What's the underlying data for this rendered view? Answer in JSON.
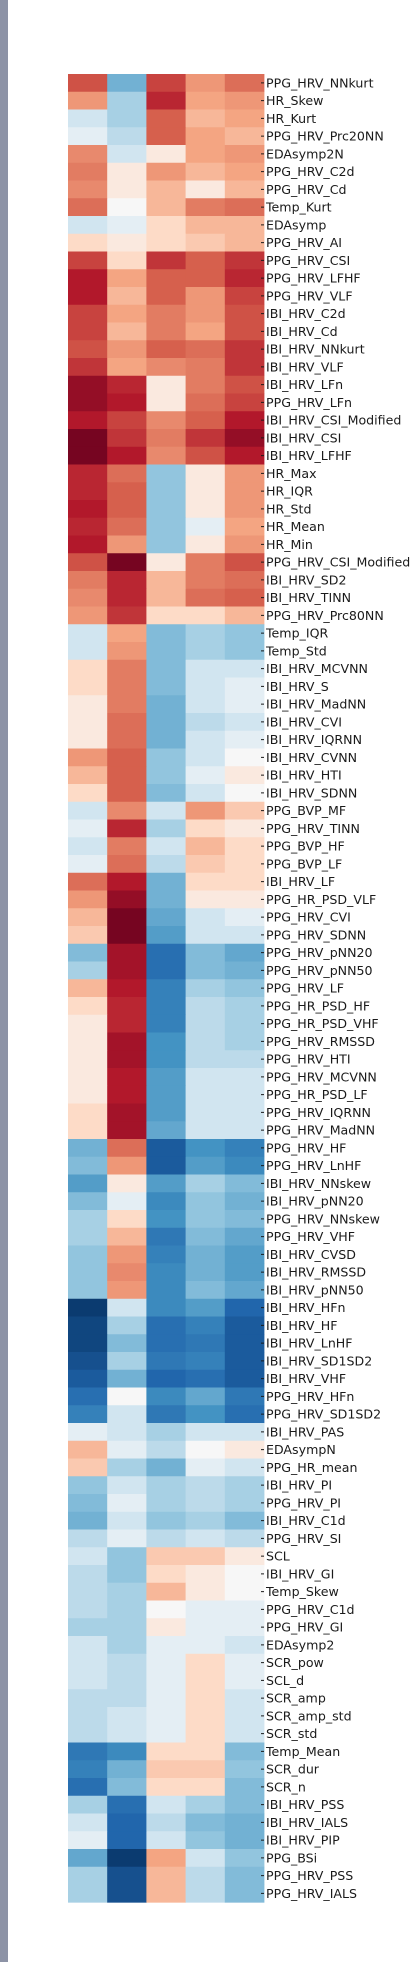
{
  "chart_data": {
    "type": "heatmap",
    "title": "",
    "xlabel": "",
    "ylabel": "",
    "columns": 5,
    "color_scale": {
      "name": "diverging red-blue",
      "range": [
        -1,
        1
      ],
      "low_color": "#053061",
      "mid_color": "#f7f7f7",
      "high_color": "#67001f"
    },
    "row_labels": [
      "PPG_HRV_NNkurt",
      "HR_Skew",
      "HR_Kurt",
      "PPG_HRV_Prc20NN",
      "EDAsymp2N",
      "PPG_HRV_C2d",
      "PPG_HRV_Cd",
      "Temp_Kurt",
      "EDAsymp",
      "PPG_HRV_AI",
      "PPG_HRV_CSI",
      "PPG_HRV_LFHF",
      "PPG_HRV_VLF",
      "IBI_HRV_C2d",
      "IBI_HRV_Cd",
      "IBI_HRV_NNkurt",
      "IBI_HRV_VLF",
      "IBI_HRV_LFn",
      "PPG_HRV_LFn",
      "IBI_HRV_CSI_Modified",
      "IBI_HRV_CSI",
      "IBI_HRV_LFHF",
      "HR_Max",
      "HR_IQR",
      "HR_Std",
      "HR_Mean",
      "HR_Min",
      "PPG_HRV_CSI_Modified",
      "IBI_HRV_SD2",
      "IBI_HRV_TINN",
      "PPG_HRV_Prc80NN",
      "Temp_IQR",
      "Temp_Std",
      "IBI_HRV_MCVNN",
      "IBI_HRV_S",
      "IBI_HRV_MadNN",
      "IBI_HRV_CVI",
      "IBI_HRV_IQRNN",
      "IBI_HRV_CVNN",
      "IBI_HRV_HTI",
      "IBI_HRV_SDNN",
      "PPG_BVP_MF",
      "PPG_HRV_TINN",
      "PPG_BVP_HF",
      "PPG_BVP_LF",
      "IBI_HRV_LF",
      "PPG_HR_PSD_VLF",
      "PPG_HRV_CVI",
      "PPG_HRV_SDNN",
      "PPG_HRV_pNN20",
      "PPG_HRV_pNN50",
      "PPG_HRV_LF",
      "PPG_HR_PSD_HF",
      "PPG_HR_PSD_VHF",
      "PPG_HRV_RMSSD",
      "PPG_HRV_HTI",
      "PPG_HRV_MCVNN",
      "PPG_HR_PSD_LF",
      "PPG_HRV_IQRNN",
      "PPG_HRV_MadNN",
      "PPG_HRV_HF",
      "PPG_HRV_LnHF",
      "IBI_HRV_NNskew",
      "IBI_HRV_pNN20",
      "PPG_HRV_NNskew",
      "PPG_HRV_VHF",
      "IBI_HRV_CVSD",
      "IBI_HRV_RMSSD",
      "IBI_HRV_pNN50",
      "IBI_HRV_HFn",
      "IBI_HRV_HF",
      "IBI_HRV_LnHF",
      "IBI_HRV_SD1SD2",
      "IBI_HRV_VHF",
      "PPG_HRV_HFn",
      "PPG_HRV_SD1SD2",
      "IBI_HRV_PAS",
      "EDAsympN",
      "PPG_HR_mean",
      "IBI_HRV_PI",
      "PPG_HRV_PI",
      "IBI_HRV_C1d",
      "PPG_HRV_SI",
      "SCL",
      "IBI_HRV_GI",
      "Temp_Skew",
      "PPG_HRV_C1d",
      "PPG_HRV_GI",
      "EDAsymp2",
      "SCR_pow",
      "SCL_d",
      "SCR_amp",
      "SCR_amp_std",
      "SCR_std",
      "Temp_Mean",
      "SCR_dur",
      "SCR_n",
      "IBI_HRV_PSS",
      "IBI_HRV_IALS",
      "IBI_HRV_PIP",
      "PPG_BSi",
      "PPG_HRV_PSS",
      "PPG_HRV_IALS"
    ],
    "values": [
      [
        0.55,
        -0.35,
        0.6,
        0.3,
        0.45
      ],
      [
        0.3,
        -0.2,
        0.7,
        0.25,
        0.3
      ],
      [
        -0.1,
        -0.2,
        0.5,
        0.2,
        0.25
      ],
      [
        -0.05,
        -0.15,
        0.5,
        0.25,
        0.2
      ],
      [
        0.35,
        -0.1,
        0.05,
        0.25,
        0.3
      ],
      [
        0.4,
        0.05,
        0.3,
        0.2,
        0.25
      ],
      [
        0.35,
        0.05,
        0.2,
        0.05,
        0.2
      ],
      [
        0.45,
        0.0,
        0.2,
        0.4,
        0.45
      ],
      [
        -0.1,
        -0.05,
        0.1,
        0.2,
        0.2
      ],
      [
        0.1,
        0.05,
        0.1,
        0.15,
        0.2
      ],
      [
        0.6,
        0.1,
        0.65,
        0.5,
        0.65
      ],
      [
        0.75,
        0.25,
        0.5,
        0.5,
        0.7
      ],
      [
        0.75,
        0.2,
        0.5,
        0.3,
        0.6
      ],
      [
        0.6,
        0.25,
        0.4,
        0.3,
        0.55
      ],
      [
        0.6,
        0.2,
        0.4,
        0.25,
        0.55
      ],
      [
        0.55,
        0.3,
        0.5,
        0.45,
        0.65
      ],
      [
        0.65,
        0.25,
        0.35,
        0.4,
        0.65
      ],
      [
        0.85,
        0.7,
        0.05,
        0.4,
        0.55
      ],
      [
        0.85,
        0.75,
        0.05,
        0.45,
        0.6
      ],
      [
        0.75,
        0.6,
        0.35,
        0.5,
        0.75
      ],
      [
        0.95,
        0.65,
        0.4,
        0.65,
        0.85
      ],
      [
        0.95,
        0.75,
        0.35,
        0.55,
        0.75
      ],
      [
        0.7,
        0.45,
        -0.25,
        0.05,
        0.3
      ],
      [
        0.7,
        0.5,
        -0.25,
        0.05,
        0.3
      ],
      [
        0.75,
        0.5,
        -0.25,
        0.05,
        0.3
      ],
      [
        0.7,
        0.45,
        -0.25,
        -0.05,
        0.25
      ],
      [
        0.75,
        0.3,
        -0.25,
        0.05,
        0.3
      ],
      [
        0.55,
        0.95,
        0.05,
        0.4,
        0.55
      ],
      [
        0.4,
        0.7,
        0.2,
        0.4,
        0.45
      ],
      [
        0.35,
        0.7,
        0.2,
        0.45,
        0.5
      ],
      [
        0.3,
        0.65,
        0.1,
        0.1,
        0.2
      ],
      [
        -0.1,
        0.25,
        -0.3,
        -0.2,
        -0.25
      ],
      [
        -0.1,
        0.3,
        -0.3,
        -0.2,
        -0.25
      ],
      [
        0.1,
        0.4,
        -0.3,
        -0.1,
        -0.1
      ],
      [
        0.1,
        0.4,
        -0.3,
        -0.1,
        -0.05
      ],
      [
        0.05,
        0.4,
        -0.35,
        -0.1,
        -0.05
      ],
      [
        0.05,
        0.45,
        -0.35,
        -0.15,
        -0.1
      ],
      [
        0.05,
        0.45,
        -0.35,
        -0.1,
        -0.05
      ],
      [
        0.3,
        0.5,
        -0.25,
        -0.1,
        0.0
      ],
      [
        0.2,
        0.5,
        -0.25,
        -0.05,
        0.05
      ],
      [
        0.1,
        0.5,
        -0.3,
        -0.1,
        0.0
      ],
      [
        -0.1,
        0.35,
        -0.1,
        0.3,
        0.15
      ],
      [
        -0.05,
        0.7,
        -0.2,
        0.1,
        0.05
      ],
      [
        -0.1,
        0.4,
        -0.1,
        0.2,
        0.1
      ],
      [
        -0.05,
        0.45,
        -0.15,
        0.15,
        0.1
      ],
      [
        0.45,
        0.75,
        -0.35,
        0.1,
        0.1
      ],
      [
        0.3,
        0.85,
        -0.35,
        0.05,
        0.05
      ],
      [
        0.2,
        0.95,
        -0.4,
        -0.1,
        -0.05
      ],
      [
        0.15,
        0.95,
        -0.45,
        -0.1,
        -0.1
      ],
      [
        -0.3,
        0.8,
        -0.7,
        -0.3,
        -0.4
      ],
      [
        -0.2,
        0.8,
        -0.7,
        -0.3,
        -0.35
      ],
      [
        0.2,
        0.75,
        -0.6,
        -0.2,
        -0.25
      ],
      [
        0.1,
        0.7,
        -0.6,
        -0.15,
        -0.2
      ],
      [
        0.05,
        0.7,
        -0.6,
        -0.15,
        -0.2
      ],
      [
        0.05,
        0.8,
        -0.5,
        -0.15,
        -0.2
      ],
      [
        0.05,
        0.8,
        -0.5,
        -0.15,
        -0.15
      ],
      [
        0.05,
        0.75,
        -0.45,
        -0.1,
        -0.1
      ],
      [
        0.05,
        0.75,
        -0.45,
        -0.1,
        -0.1
      ],
      [
        0.1,
        0.8,
        -0.45,
        -0.1,
        -0.1
      ],
      [
        0.1,
        0.8,
        -0.4,
        -0.1,
        -0.1
      ],
      [
        -0.35,
        0.45,
        -0.8,
        -0.5,
        -0.6
      ],
      [
        -0.3,
        0.3,
        -0.8,
        -0.45,
        -0.55
      ],
      [
        -0.45,
        0.05,
        -0.45,
        -0.2,
        -0.3
      ],
      [
        -0.3,
        -0.05,
        -0.55,
        -0.25,
        -0.35
      ],
      [
        -0.2,
        0.1,
        -0.5,
        -0.25,
        -0.3
      ],
      [
        -0.2,
        0.2,
        -0.65,
        -0.3,
        -0.4
      ],
      [
        -0.25,
        0.3,
        -0.6,
        -0.35,
        -0.45
      ],
      [
        -0.25,
        0.35,
        -0.55,
        -0.35,
        -0.45
      ],
      [
        -0.25,
        0.3,
        -0.55,
        -0.3,
        -0.4
      ],
      [
        -0.95,
        -0.1,
        -0.55,
        -0.45,
        -0.75
      ],
      [
        -0.9,
        -0.2,
        -0.7,
        -0.6,
        -0.8
      ],
      [
        -0.9,
        -0.3,
        -0.7,
        -0.65,
        -0.8
      ],
      [
        -0.85,
        -0.2,
        -0.65,
        -0.6,
        -0.8
      ],
      [
        -0.8,
        -0.35,
        -0.75,
        -0.7,
        -0.8
      ],
      [
        -0.7,
        0.0,
        -0.55,
        -0.4,
        -0.65
      ],
      [
        -0.6,
        -0.1,
        -0.65,
        -0.5,
        -0.7
      ],
      [
        -0.05,
        -0.1,
        -0.2,
        -0.1,
        -0.1
      ],
      [
        0.2,
        -0.05,
        -0.15,
        0.0,
        0.05
      ],
      [
        0.15,
        -0.2,
        -0.35,
        -0.05,
        -0.1
      ],
      [
        -0.25,
        -0.1,
        -0.2,
        -0.15,
        -0.2
      ],
      [
        -0.3,
        -0.05,
        -0.2,
        -0.15,
        -0.2
      ],
      [
        -0.35,
        -0.1,
        -0.25,
        -0.2,
        -0.3
      ],
      [
        -0.15,
        -0.05,
        -0.15,
        -0.1,
        -0.15
      ],
      [
        -0.1,
        -0.25,
        0.15,
        0.15,
        0.05
      ],
      [
        -0.15,
        -0.25,
        0.1,
        0.05,
        0.0
      ],
      [
        -0.15,
        -0.2,
        0.2,
        0.05,
        0.0
      ],
      [
        -0.15,
        -0.2,
        0.0,
        -0.05,
        -0.05
      ],
      [
        -0.2,
        -0.2,
        0.05,
        -0.05,
        -0.05
      ],
      [
        -0.1,
        -0.2,
        -0.05,
        -0.05,
        -0.1
      ],
      [
        -0.1,
        -0.15,
        -0.05,
        0.1,
        -0.05
      ],
      [
        -0.1,
        -0.15,
        -0.05,
        0.1,
        -0.05
      ],
      [
        -0.15,
        -0.15,
        -0.05,
        0.1,
        -0.1
      ],
      [
        -0.15,
        -0.1,
        -0.05,
        0.1,
        -0.1
      ],
      [
        -0.15,
        -0.1,
        -0.05,
        0.1,
        -0.1
      ],
      [
        -0.65,
        -0.55,
        0.1,
        0.1,
        -0.3
      ],
      [
        -0.6,
        -0.35,
        0.15,
        0.15,
        -0.25
      ],
      [
        -0.7,
        -0.3,
        0.1,
        0.1,
        -0.3
      ],
      [
        -0.2,
        -0.7,
        -0.1,
        -0.2,
        -0.3
      ],
      [
        -0.1,
        -0.75,
        -0.15,
        -0.3,
        -0.35
      ],
      [
        -0.05,
        -0.75,
        -0.1,
        -0.25,
        -0.35
      ],
      [
        -0.4,
        -0.95,
        0.25,
        -0.1,
        -0.25
      ],
      [
        -0.2,
        -0.85,
        0.2,
        -0.15,
        -0.3
      ],
      [
        -0.2,
        -0.85,
        0.2,
        -0.15,
        -0.3
      ]
    ]
  }
}
